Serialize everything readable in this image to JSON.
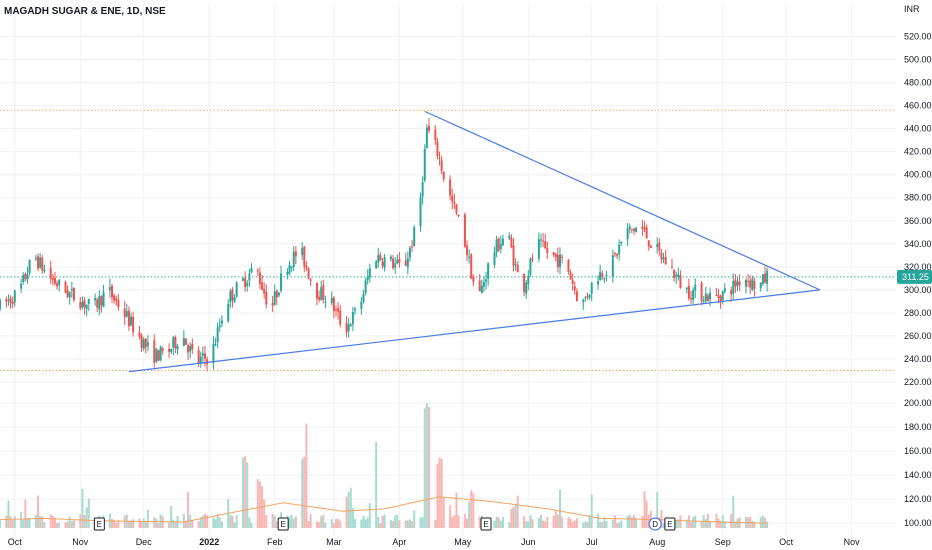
{
  "header": {
    "symbol": "MAGADH SUGAR & ENE, 1D, NSE",
    "currency": "INR"
  },
  "colors": {
    "up": "#26a69a",
    "down": "#ef5350",
    "up_volume": "#a7dbd2",
    "down_volume": "#f7b7b4",
    "trendline": "#4a7be8",
    "level": "#f5a35c",
    "volume_ma": "#f4a460",
    "grid": "#eef0f3",
    "price_line": "#26a69a",
    "dividend": "#2962ff"
  },
  "chart_data": {
    "type": "candlestick",
    "title": "MAGADH SUGAR & ENE, 1D, NSE",
    "ylabel": "INR",
    "ylim": [
      220,
      530
    ],
    "y_ticks": [
      "520.00",
      "500.00",
      "480.00",
      "460.00",
      "440.00",
      "420.00",
      "400.00",
      "380.00",
      "360.00",
      "340.00",
      "320.00",
      "300.00",
      "280.00",
      "260.00",
      "240.00",
      "220.00"
    ],
    "volume_ticks": [
      "200.00",
      "180.00",
      "160.00",
      "140.00",
      "120.00",
      "100.00"
    ],
    "volume_ylim": [
      96,
      206
    ],
    "x_ticks": [
      {
        "label": "Oct",
        "x": "2021-10-01"
      },
      {
        "label": "Nov",
        "x": "2021-11-01"
      },
      {
        "label": "Dec",
        "x": "2021-12-01"
      },
      {
        "label": "2022",
        "x": "2022-01-01",
        "bold": true
      },
      {
        "label": "Feb",
        "x": "2022-02-01"
      },
      {
        "label": "Mar",
        "x": "2022-03-01"
      },
      {
        "label": "Apr",
        "x": "2022-04-01"
      },
      {
        "label": "May",
        "x": "2022-05-01"
      },
      {
        "label": "Jun",
        "x": "2022-06-01"
      },
      {
        "label": "Jul",
        "x": "2022-07-01"
      },
      {
        "label": "Aug",
        "x": "2022-08-01"
      },
      {
        "label": "Sep",
        "x": "2022-09-01"
      },
      {
        "label": "Oct",
        "x": "2022-10-01"
      },
      {
        "label": "Nov",
        "x": "2022-11-01"
      }
    ],
    "x_range": [
      "2021-09-24",
      "2022-11-22"
    ],
    "last_price": "311.25",
    "grid": true,
    "horizontal_levels": [
      456,
      230
    ],
    "trendlines": [
      {
        "from": [
          "2022-04-13",
          455
        ],
        "to": [
          "2022-10-17",
          300
        ]
      },
      {
        "from": [
          "2021-11-24",
          229
        ],
        "to": [
          "2022-10-17",
          300
        ]
      }
    ],
    "events": [
      {
        "label": "E",
        "x": "2021-11-10"
      },
      {
        "label": "E",
        "x": "2022-02-05"
      },
      {
        "label": "E",
        "x": "2022-05-12"
      },
      {
        "label": "D",
        "x": "2022-07-31"
      },
      {
        "label": "E",
        "x": "2022-08-07"
      }
    ],
    "price_path": [
      [
        "2021-09-24",
        285
      ],
      [
        "2021-10-03",
        298
      ],
      [
        "2021-10-10",
        330
      ],
      [
        "2021-10-17",
        312
      ],
      [
        "2021-10-24",
        300
      ],
      [
        "2021-10-31",
        292
      ],
      [
        "2021-11-07",
        284
      ],
      [
        "2021-11-14",
        300
      ],
      [
        "2021-11-21",
        282
      ],
      [
        "2021-11-28",
        262
      ],
      [
        "2021-12-05",
        243
      ],
      [
        "2021-12-12",
        245
      ],
      [
        "2021-12-19",
        262
      ],
      [
        "2021-12-26",
        237
      ],
      [
        "2022-01-02",
        243
      ],
      [
        "2022-01-09",
        290
      ],
      [
        "2022-01-16",
        305
      ],
      [
        "2022-01-23",
        320
      ],
      [
        "2022-01-30",
        282
      ],
      [
        "2022-02-06",
        320
      ],
      [
        "2022-02-13",
        335
      ],
      [
        "2022-02-20",
        300
      ],
      [
        "2022-02-27",
        292
      ],
      [
        "2022-03-06",
        265
      ],
      [
        "2022-03-13",
        285
      ],
      [
        "2022-03-20",
        330
      ],
      [
        "2022-03-27",
        325
      ],
      [
        "2022-04-03",
        318
      ],
      [
        "2022-04-10",
        360
      ],
      [
        "2022-04-14",
        440
      ],
      [
        "2022-04-19",
        420
      ],
      [
        "2022-04-24",
        385
      ],
      [
        "2022-05-01",
        350
      ],
      [
        "2022-05-08",
        290
      ],
      [
        "2022-05-15",
        332
      ],
      [
        "2022-05-22",
        350
      ],
      [
        "2022-05-29",
        298
      ],
      [
        "2022-06-05",
        340
      ],
      [
        "2022-06-12",
        330
      ],
      [
        "2022-06-19",
        322
      ],
      [
        "2022-06-26",
        285
      ],
      [
        "2022-07-03",
        312
      ],
      [
        "2022-07-10",
        320
      ],
      [
        "2022-07-17",
        350
      ],
      [
        "2022-07-24",
        355
      ],
      [
        "2022-07-31",
        335
      ],
      [
        "2022-08-07",
        320
      ],
      [
        "2022-08-14",
        300
      ],
      [
        "2022-08-21",
        297
      ],
      [
        "2022-08-28",
        293
      ],
      [
        "2022-09-04",
        300
      ],
      [
        "2022-09-11",
        312
      ],
      [
        "2022-09-18",
        302
      ],
      [
        "2022-09-22",
        312
      ]
    ],
    "volume_path": [
      [
        "2021-09-24",
        103
      ],
      [
        "2021-10-15",
        104
      ],
      [
        "2021-11-10",
        102
      ],
      [
        "2021-12-20",
        101
      ],
      [
        "2022-01-15",
        110
      ],
      [
        "2022-02-05",
        117
      ],
      [
        "2022-03-05",
        110
      ],
      [
        "2022-03-25",
        112
      ],
      [
        "2022-04-20",
        122
      ],
      [
        "2022-05-15",
        118
      ],
      [
        "2022-06-10",
        112
      ],
      [
        "2022-07-05",
        104
      ],
      [
        "2022-07-31",
        103
      ],
      [
        "2022-08-30",
        101
      ],
      [
        "2022-09-22",
        100
      ]
    ],
    "volume_spikes": [
      [
        "2021-10-05",
        110
      ],
      [
        "2021-11-05",
        112
      ],
      [
        "2022-01-18",
        156
      ],
      [
        "2022-01-25",
        140
      ],
      [
        "2022-02-05",
        118
      ],
      [
        "2022-02-15",
        162
      ],
      [
        "2022-03-08",
        130
      ],
      [
        "2022-03-20",
        168
      ],
      [
        "2022-04-14",
        205
      ],
      [
        "2022-04-20",
        158
      ],
      [
        "2022-05-05",
        128
      ],
      [
        "2022-05-25",
        118
      ],
      [
        "2022-06-15",
        112
      ],
      [
        "2022-07-20",
        114
      ],
      [
        "2022-08-20",
        104
      ]
    ]
  }
}
